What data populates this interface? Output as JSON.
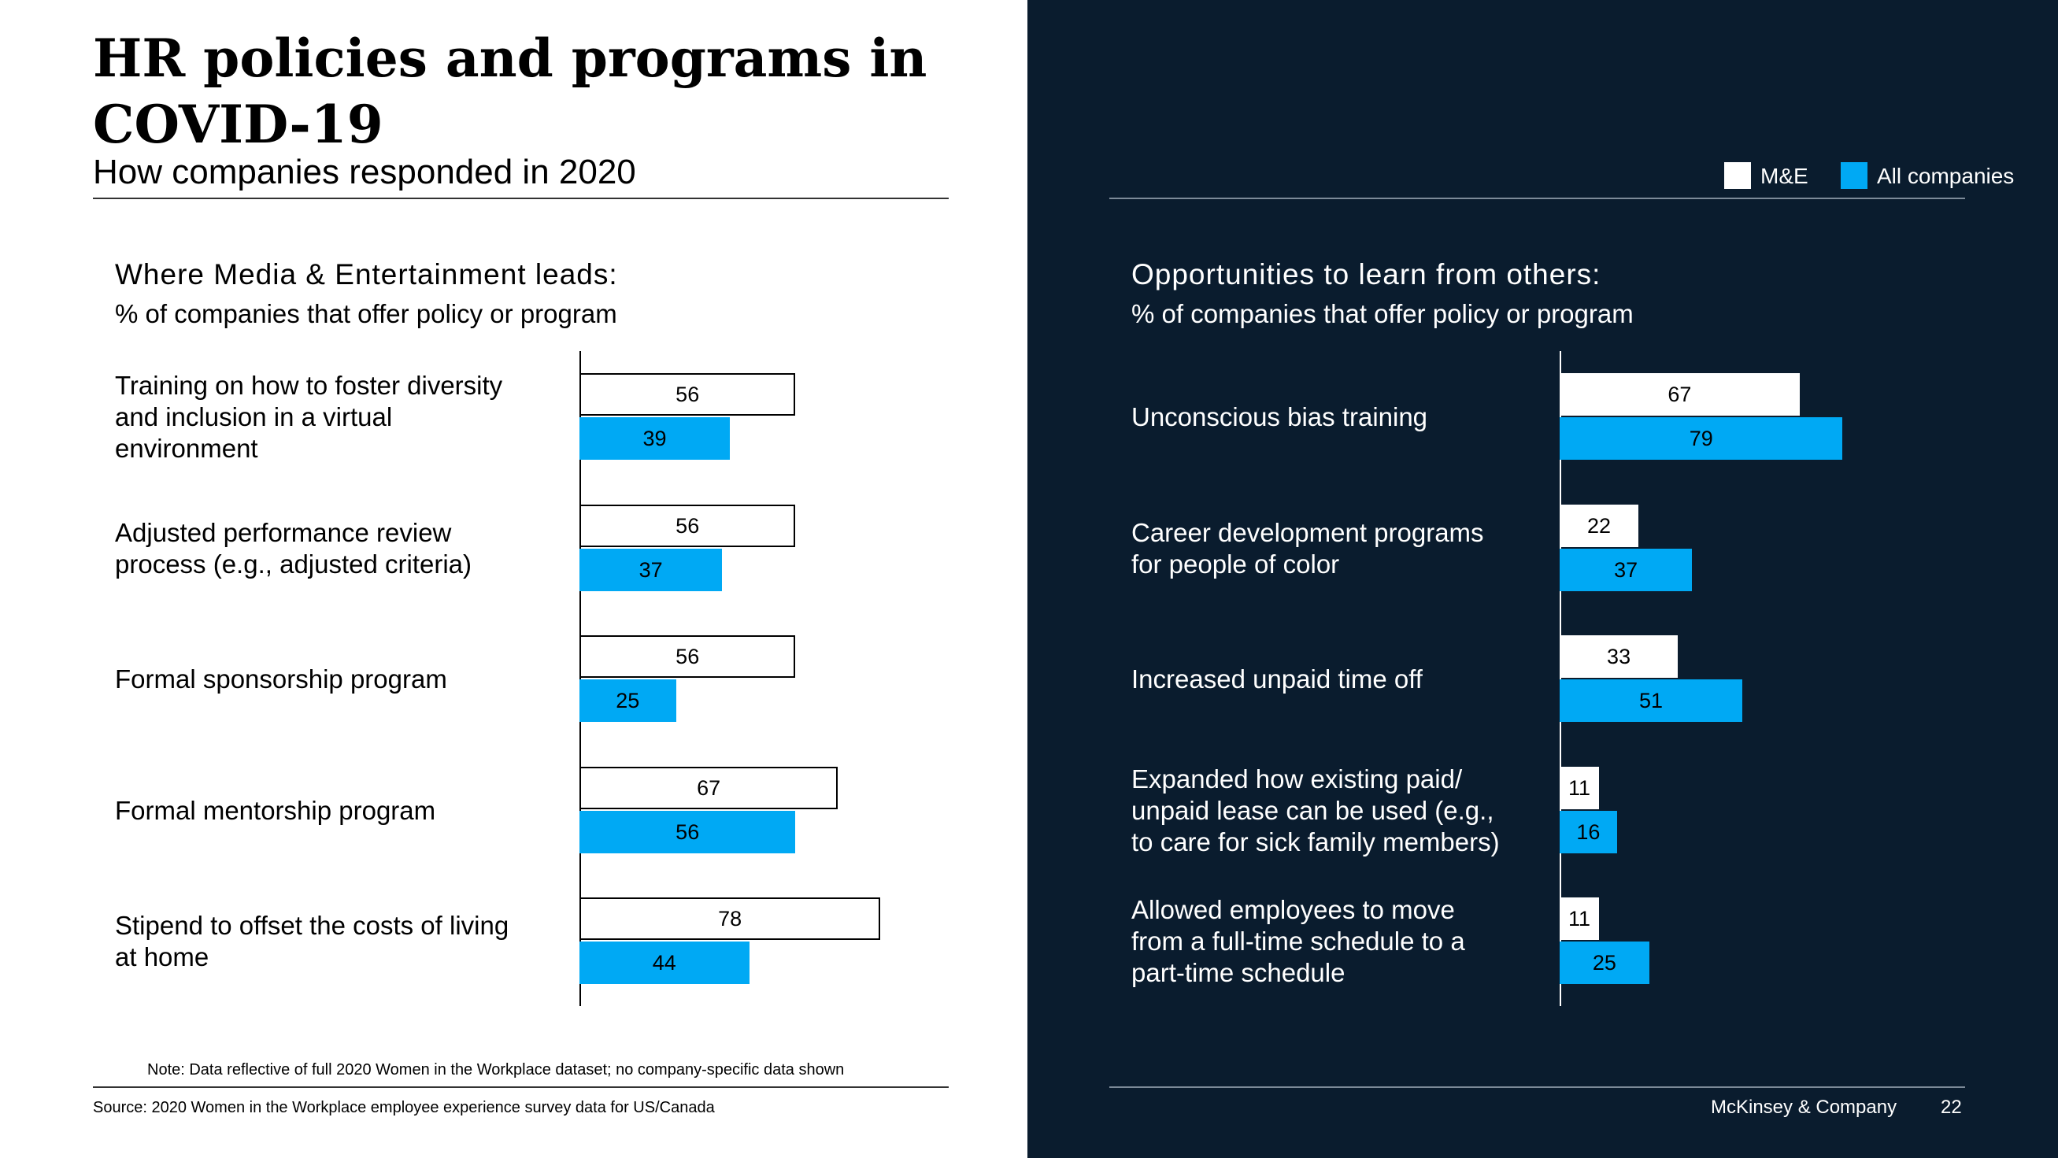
{
  "header": {
    "title_line1": "HR policies and programs in",
    "title_line2": "COVID-19",
    "subtitle": "How companies responded in 2020"
  },
  "legend": {
    "me_label": "M&E",
    "all_label": "All companies"
  },
  "colors": {
    "me": "#ffffff",
    "all_companies": "#00a9f4",
    "dark_panel": "#0a1c2e"
  },
  "left_section": {
    "title": "Where Media & Entertainment leads:",
    "subtitle": "% of companies that offer policy or program"
  },
  "right_section": {
    "title": "Opportunities to learn from others:",
    "subtitle": "% of companies that offer policy or program"
  },
  "chart_data": [
    {
      "type": "bar",
      "orientation": "horizontal",
      "categories": [
        [
          "Training on how to foster diversity",
          "and inclusion in a virtual",
          "environment"
        ],
        [
          "Adjusted performance review",
          "process (e.g., adjusted criteria)"
        ],
        [
          "Formal sponsorship program"
        ],
        [
          "Formal mentorship program"
        ],
        [
          "Stipend to offset the costs of living",
          "at home"
        ]
      ],
      "series": [
        {
          "name": "M&E",
          "values": [
            56,
            56,
            56,
            67,
            78
          ]
        },
        {
          "name": "All companies",
          "values": [
            39,
            37,
            25,
            56,
            44
          ]
        }
      ],
      "xlim": [
        0,
        100
      ],
      "grid": false
    },
    {
      "type": "bar",
      "orientation": "horizontal",
      "categories": [
        [
          "Unconscious bias training"
        ],
        [
          "Career development programs",
          "for people of color"
        ],
        [
          "Increased unpaid time off"
        ],
        [
          "Expanded how existing paid/",
          "unpaid lease can be used (e.g.,",
          "to care for sick family members)"
        ],
        [
          "Allowed employees to move",
          "from a full-time schedule to a",
          "part-time schedule"
        ]
      ],
      "series": [
        {
          "name": "M&E",
          "values": [
            67,
            22,
            33,
            11,
            11
          ]
        },
        {
          "name": "All companies",
          "values": [
            79,
            37,
            51,
            16,
            25
          ]
        }
      ],
      "xlim": [
        0,
        100
      ],
      "grid": false
    }
  ],
  "footer": {
    "note": "Note: Data reflective of full 2020 Women in the Workplace dataset; no company-specific data shown",
    "source": "Source: 2020 Women in the Workplace employee experience survey data for US/Canada",
    "brand": "McKinsey & Company",
    "page_number": "22"
  }
}
